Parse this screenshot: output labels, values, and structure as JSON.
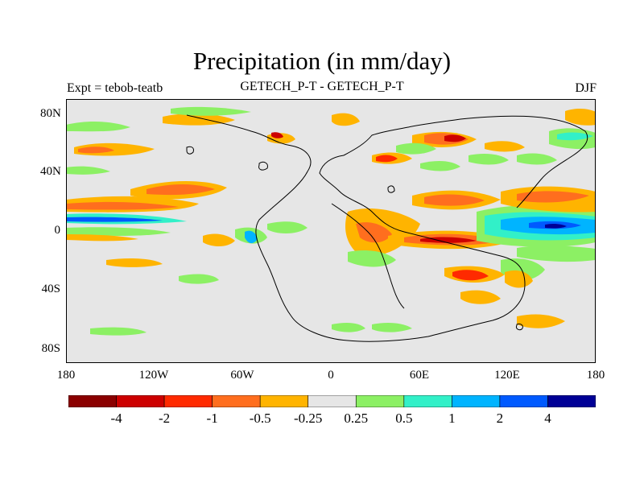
{
  "title": "Precipitation (in mm/day)",
  "subtitle_left": "Expt = tebob-teatb",
  "subtitle_center": "GETECH_P-T - GETECH_P-T",
  "subtitle_right": "DJF",
  "y_ticks": [
    "80N",
    "40N",
    "0",
    "40S",
    "80S"
  ],
  "x_ticks": [
    "180",
    "120W",
    "60W",
    "0",
    "60E",
    "120E",
    "180"
  ],
  "colorbar": {
    "colors": [
      "#8b0000",
      "#cd0000",
      "#ff2a00",
      "#ff6e1e",
      "#ffb400",
      "#e6e6e6",
      "#8cf064",
      "#32f0c8",
      "#00b4ff",
      "#005aff",
      "#000096"
    ],
    "labels": [
      "-4",
      "-2",
      "-1",
      "-0.5",
      "-0.25",
      "0.25",
      "0.5",
      "1",
      "2",
      "4"
    ]
  },
  "colors": {
    "land_background": "#e6e6e6",
    "frame": "#000000"
  }
}
